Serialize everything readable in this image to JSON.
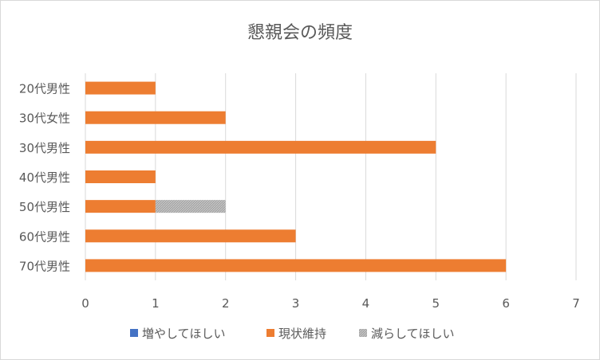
{
  "chart_data": {
    "type": "bar",
    "orientation": "horizontal",
    "stacked": true,
    "title": "懇親会の頻度",
    "categories": [
      "20代男性",
      "30代女性",
      "30代男性",
      "40代男性",
      "50代男性",
      "60代男性",
      "70代男性"
    ],
    "series": [
      {
        "name": "増やしてほしい",
        "color": "#4472c4",
        "values": [
          0,
          0,
          0,
          0,
          0,
          0,
          0
        ]
      },
      {
        "name": "現状維持",
        "color": "#ed7d31",
        "values": [
          1,
          2,
          5,
          1,
          1,
          3,
          6
        ]
      },
      {
        "name": "減らしてほしい",
        "color": "#a5a5a5",
        "pattern": "hatched",
        "values": [
          0,
          0,
          0,
          0,
          1,
          0,
          0
        ]
      }
    ],
    "xlim": [
      0,
      7
    ],
    "xticks": [
      "0",
      "1",
      "2",
      "3",
      "4",
      "5",
      "6",
      "7"
    ],
    "grid": true,
    "legend_position": "bottom"
  }
}
